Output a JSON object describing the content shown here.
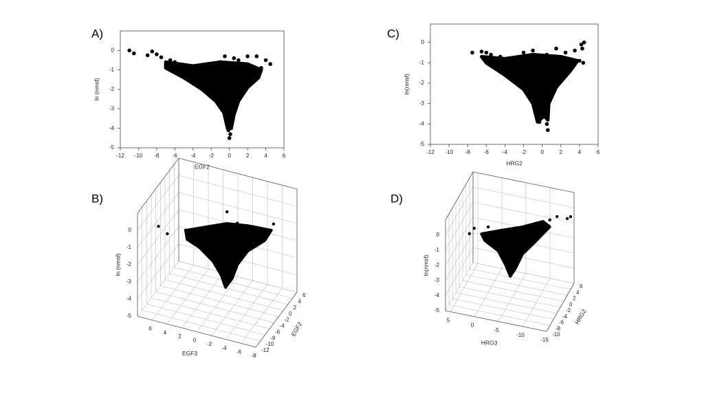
{
  "chart_data": [
    {
      "type": "scatter",
      "panel": "A)",
      "xlabel": "EGF2",
      "ylabel": "ln (nmsf)",
      "color": "#000000",
      "xlim": [
        -12,
        6
      ],
      "ylim": [
        -5,
        1
      ],
      "xticks": [
        -12,
        -10,
        -8,
        -6,
        -4,
        -2,
        0,
        2,
        4,
        6
      ],
      "yticks": [
        -5,
        -4,
        -3,
        -2,
        -1,
        0
      ],
      "x": [
        -11,
        -10.5,
        -8.5,
        -9,
        -7.5,
        -8,
        -6.5,
        -6,
        -5,
        -0.5,
        0.5,
        2,
        3,
        4,
        4.5,
        3.5,
        1,
        -1,
        0,
        0.1,
        -0.1
      ],
      "y": [
        0,
        -0.15,
        -0.05,
        -0.25,
        -0.35,
        -0.2,
        -0.5,
        -0.6,
        -0.75,
        -0.3,
        -0.4,
        -0.3,
        -0.3,
        -0.5,
        -0.7,
        -0.9,
        -0.5,
        -0.6,
        -4.5,
        -4.3,
        -4.1
      ],
      "region": {
        "x": [
          -7,
          -4,
          -1,
          2,
          3.5,
          3.2,
          2,
          1,
          0.5,
          0.2,
          -0.2,
          -0.6,
          -1.5,
          -3,
          -5,
          -7
        ],
        "y": [
          -0.6,
          -0.8,
          -0.6,
          -0.7,
          -1.0,
          -1.4,
          -1.9,
          -2.6,
          -3.3,
          -4.0,
          -4.0,
          -3.2,
          -2.6,
          -2.0,
          -1.4,
          -0.9
        ]
      }
    },
    {
      "type": "scatter3d",
      "panel": "B)",
      "xlabel": "EGF3",
      "ylabel": "EGF2",
      "zlabel": "ln (nmsf)",
      "color": "#000000",
      "xlim": [
        8,
        -8
      ],
      "ylim": [
        -12,
        6
      ],
      "zlim": [
        -5,
        1
      ],
      "xticks": [
        6,
        4,
        2,
        0,
        -2,
        -4,
        -6,
        -8
      ],
      "yticks": [
        -12,
        -10,
        -8,
        -6,
        -4,
        -2,
        0,
        2,
        4,
        6
      ],
      "zticks": [
        -5,
        -4,
        -3,
        -2,
        -1,
        0
      ],
      "x": [
        6.4,
        5.2,
        -0.7,
        -2.1,
        -7,
        4.9
      ],
      "y": [
        -8,
        -8,
        -1,
        -1,
        -1,
        -1
      ],
      "z": [
        -0.3,
        -0.6,
        0.1,
        -0.4,
        0.1,
        -1.6
      ],
      "region": {
        "x": [
          4.9,
          2.1,
          -0.7,
          -3.5,
          -6.7,
          -5.8,
          -3.5,
          -2.1,
          -1.4,
          -0.5,
          0.1,
          1.2,
          3.0,
          4.7
        ],
        "y": [
          -1,
          -1,
          -1,
          -1,
          -1,
          -1,
          -1,
          -1,
          -1,
          -1,
          -1,
          -1,
          -1,
          -1
        ],
        "z": [
          -1.61,
          -1.09,
          -0.58,
          -0.39,
          -0.3,
          -1.0,
          -1.87,
          -2.82,
          -3.7,
          -4.32,
          -3.66,
          -2.99,
          -2.4,
          -2.11
        ]
      }
    },
    {
      "type": "scatter",
      "panel": "C)",
      "xlabel": "HRG2",
      "ylabel": "ln(nmsf)",
      "color": "#000000",
      "xlim": [
        -12,
        6
      ],
      "ylim": [
        -5,
        0.9
      ],
      "xticks": [
        -12,
        -10,
        -8,
        -6,
        -4,
        -2,
        0,
        2,
        4,
        6
      ],
      "yticks": [
        -5,
        -4,
        -3,
        -2,
        -1,
        0
      ],
      "x": [
        -7.5,
        -6.5,
        -6,
        -5.5,
        -4.5,
        -2,
        -1,
        0.5,
        1.5,
        2.5,
        3.5,
        4.2,
        4.5,
        4.3,
        4,
        4.4,
        0.6,
        0.5,
        -0.3
      ],
      "y": [
        -0.5,
        -0.45,
        -0.5,
        -0.6,
        -0.7,
        -0.5,
        -0.4,
        -0.6,
        -0.3,
        -0.5,
        -0.4,
        -0.1,
        0,
        -0.3,
        -0.9,
        -1.0,
        -4.3,
        -4.0,
        -3.9
      ],
      "region": {
        "x": [
          -6.5,
          -4,
          -1,
          2,
          3.8,
          3,
          1.5,
          0.7,
          0.6,
          0.2,
          -0.5,
          -1,
          -2,
          -4,
          -6
        ],
        "y": [
          -0.7,
          -0.8,
          -0.6,
          -0.7,
          -0.9,
          -1.4,
          -2.2,
          -3.0,
          -3.8,
          -3.6,
          -3.9,
          -3.0,
          -2.3,
          -1.6,
          -1.0
        ]
      }
    },
    {
      "type": "scatter3d",
      "panel": "D)",
      "xlabel": "HRG3",
      "ylabel": "HRG2",
      "zlabel": "ln(nmsf)",
      "color": "#000000",
      "xlim": [
        6,
        -15
      ],
      "ylim": [
        -10,
        6
      ],
      "zlim": [
        -5,
        1
      ],
      "xticks": [
        5,
        0,
        -5,
        -10,
        -15
      ],
      "yticks": [
        -10,
        -8,
        -6,
        -4,
        -2,
        0,
        2,
        4,
        6
      ],
      "zticks": [
        -5,
        -4,
        -3,
        -2,
        -1,
        0
      ],
      "x": [
        4.6,
        3.6,
        0.7,
        -13.6,
        -15,
        -14.3,
        -12.1
      ],
      "y": [
        0,
        0,
        0,
        0,
        4,
        4,
        0
      ],
      "z": [
        -1.8,
        -1.38,
        -1.1,
        0.51,
        -0.2,
        -0.37,
        0.19
      ],
      "region": {
        "x": [
          2.1,
          -2.1,
          -6.4,
          -10.7,
          -12.1,
          -9.3,
          -6.4,
          -5.0,
          -3.9,
          -2.9,
          -1.4,
          1.4
        ],
        "y": [
          0,
          0,
          0,
          0,
          0,
          0,
          0,
          0,
          0,
          0,
          0,
          0
        ],
        "z": [
          -1.65,
          -1.14,
          -0.64,
          0.0,
          -0.26,
          -1.36,
          -2.45,
          -3.45,
          -4.07,
          -3.37,
          -2.55,
          -2.05
        ]
      }
    }
  ]
}
